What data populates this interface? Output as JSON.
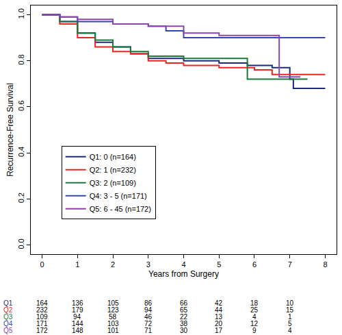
{
  "chart_data": {
    "type": "line",
    "line_style": "steps",
    "x_label": "Years from Surgery",
    "y_label": "Recurrence-Free Survival",
    "xlim": [
      -0.32,
      8.32
    ],
    "xticks": [
      0,
      1,
      2,
      3,
      4,
      5,
      6,
      7,
      8
    ],
    "ylim": [
      -0.04,
      1.04
    ],
    "yticks": [
      {
        "value": 0,
        "label": "0.0"
      },
      {
        "value": 0.2,
        "label": "0.2"
      },
      {
        "value": 0.4,
        "label": "0.4"
      },
      {
        "value": 0.6,
        "label": "0.6"
      },
      {
        "value": 0.8,
        "label": "0.8"
      },
      {
        "value": 1,
        "label": "1.0"
      }
    ],
    "grid": false,
    "legend": "lower left",
    "at_risk_x": [
      0,
      1,
      2,
      3,
      4,
      5,
      6,
      7
    ],
    "series": [
      {
        "name": "Q1: 0 (n=164)",
        "risk_label": "Q1",
        "color": "#1c2a78",
        "x": [
          0,
          0.5,
          1,
          1.5,
          2,
          2.5,
          3,
          4,
          5,
          5.8,
          6.5,
          7,
          7.1,
          8
        ],
        "values": [
          1,
          0.97,
          0.92,
          0.88,
          0.86,
          0.83,
          0.81,
          0.8,
          0.79,
          0.78,
          0.77,
          0.72,
          0.68,
          0.68
        ],
        "at_risk": [
          164,
          136,
          105,
          86,
          66,
          42,
          18,
          10
        ]
      },
      {
        "name": "Q2: 1 (n=232)",
        "risk_label": "Q2",
        "color": "#e8281e",
        "x": [
          0,
          0.5,
          1,
          1.5,
          2,
          2.5,
          3,
          3.5,
          4,
          5,
          6,
          6.5,
          8
        ],
        "values": [
          1,
          0.96,
          0.9,
          0.86,
          0.84,
          0.83,
          0.8,
          0.79,
          0.78,
          0.77,
          0.76,
          0.74,
          0.74
        ],
        "at_risk": [
          232,
          179,
          123,
          94,
          65,
          44,
          25,
          15
        ]
      },
      {
        "name": "Q3: 2 (n=109)",
        "risk_label": "Q3",
        "color": "#1a7a3a",
        "x": [
          0,
          0.5,
          1,
          1.5,
          2,
          2.5,
          3,
          4,
          5.8,
          7.5
        ],
        "values": [
          1,
          0.97,
          0.92,
          0.89,
          0.86,
          0.84,
          0.82,
          0.81,
          0.72,
          0.72
        ],
        "at_risk": [
          109,
          94,
          58,
          46,
          22,
          13,
          4,
          1
        ]
      },
      {
        "name": "Q4: 3 - 5 (n=171)",
        "risk_label": "Q4",
        "color": "#3447b8",
        "x": [
          0,
          0.5,
          1,
          2,
          3,
          3.5,
          4,
          8
        ],
        "values": [
          1,
          0.99,
          0.97,
          0.96,
          0.95,
          0.93,
          0.9,
          0.9
        ],
        "at_risk": [
          171,
          144,
          103,
          72,
          38,
          20,
          12,
          5
        ]
      },
      {
        "name": "Q5: 6 - 45 (n=172)",
        "risk_label": "Q5",
        "color": "#8e44ad",
        "x": [
          0,
          0.5,
          1,
          2,
          3,
          4,
          5,
          6.7,
          7.3
        ],
        "values": [
          1,
          0.99,
          0.98,
          0.96,
          0.95,
          0.92,
          0.91,
          0.73,
          0.73
        ],
        "at_risk": [
          172,
          148,
          101,
          71,
          30,
          17,
          9,
          4
        ]
      }
    ]
  }
}
